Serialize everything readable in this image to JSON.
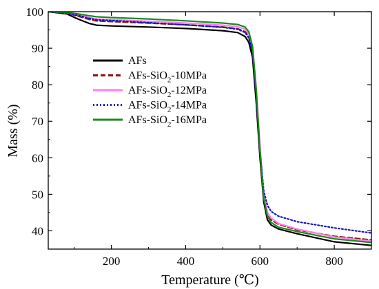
{
  "chart_data": {
    "type": "line",
    "xlabel": "Temperature (℃)",
    "ylabel": "Mass (%)",
    "xlim": [
      30,
      900
    ],
    "ylim": [
      35,
      100
    ],
    "xticks": [
      200,
      400,
      600,
      800
    ],
    "yticks": [
      40,
      50,
      60,
      70,
      80,
      90,
      100
    ],
    "grid": false,
    "legend_position": "upper-left",
    "series": [
      {
        "name": "AFs",
        "legend": {
          "pre": "AFs",
          "sub": "",
          "post": ""
        },
        "color": "#000000",
        "dash": "solid",
        "x": [
          30,
          80,
          110,
          140,
          160,
          200,
          300,
          400,
          500,
          540,
          560,
          570,
          580,
          590,
          600,
          610,
          620,
          630,
          650,
          700,
          800,
          900
        ],
        "y": [
          100,
          99.4,
          98.0,
          96.8,
          96.3,
          96.1,
          95.8,
          95.4,
          94.8,
          94.3,
          93.2,
          91.6,
          87.5,
          75,
          60,
          48,
          43,
          41.6,
          40.5,
          39.2,
          37,
          36
        ]
      },
      {
        "name": "AFs-SiO2-10MPa",
        "legend": {
          "pre": "AFs-SiO",
          "sub": "2",
          "post": "-10MPa"
        },
        "color": "#8b1a1a",
        "dash": "dashed",
        "x": [
          30,
          80,
          110,
          140,
          160,
          200,
          300,
          400,
          500,
          540,
          560,
          570,
          580,
          590,
          600,
          610,
          620,
          630,
          650,
          700,
          800,
          900
        ],
        "y": [
          100,
          99.6,
          98.8,
          97.9,
          97.5,
          97.3,
          96.9,
          96.4,
          95.8,
          95.3,
          94.5,
          93.2,
          89.5,
          78,
          62,
          49.5,
          44.5,
          43,
          41.8,
          40.3,
          38.5,
          37.5
        ]
      },
      {
        "name": "AFs-SiO2-12MPa",
        "legend": {
          "pre": "AFs-SiO",
          "sub": "2",
          "post": "-12MPa"
        },
        "color": "#ff7ff0",
        "dash": "solid",
        "x": [
          30,
          80,
          110,
          140,
          160,
          200,
          300,
          400,
          500,
          540,
          560,
          570,
          580,
          590,
          600,
          610,
          620,
          630,
          650,
          700,
          800,
          900
        ],
        "y": [
          100,
          99.7,
          99.1,
          98.4,
          98.0,
          97.8,
          97.4,
          96.9,
          96.3,
          95.9,
          95.2,
          94.0,
          90.5,
          79,
          63,
          50,
          45,
          43.5,
          42,
          40.5,
          38.3,
          37.2
        ]
      },
      {
        "name": "AFs-SiO2-14MPa",
        "legend": {
          "pre": "AFs-SiO",
          "sub": "2",
          "post": "-14MPa"
        },
        "color": "#1414c8",
        "dash": "dotted",
        "x": [
          30,
          80,
          110,
          140,
          160,
          200,
          300,
          400,
          500,
          540,
          560,
          570,
          580,
          590,
          600,
          610,
          620,
          630,
          650,
          700,
          800,
          900
        ],
        "y": [
          100,
          99.6,
          99.0,
          98.2,
          97.8,
          97.6,
          97.0,
          96.4,
          95.7,
          95.2,
          94.3,
          92.8,
          89,
          77,
          62,
          51,
          47,
          45.3,
          44,
          42.5,
          40.8,
          39.4
        ]
      },
      {
        "name": "AFs-SiO2-16MPa",
        "legend": {
          "pre": "AFs-SiO",
          "sub": "2",
          "post": "-16MPa"
        },
        "color": "#1b8a1b",
        "dash": "solid",
        "x": [
          30,
          80,
          110,
          140,
          160,
          200,
          300,
          400,
          500,
          540,
          560,
          570,
          580,
          590,
          600,
          610,
          620,
          630,
          650,
          700,
          800,
          900
        ],
        "y": [
          100,
          99.8,
          99.4,
          98.9,
          98.6,
          98.4,
          98.0,
          97.5,
          96.9,
          96.5,
          95.8,
          94.5,
          90.5,
          78.5,
          62,
          49,
          44,
          42.3,
          41,
          39.8,
          37.8,
          36.8
        ]
      }
    ]
  }
}
